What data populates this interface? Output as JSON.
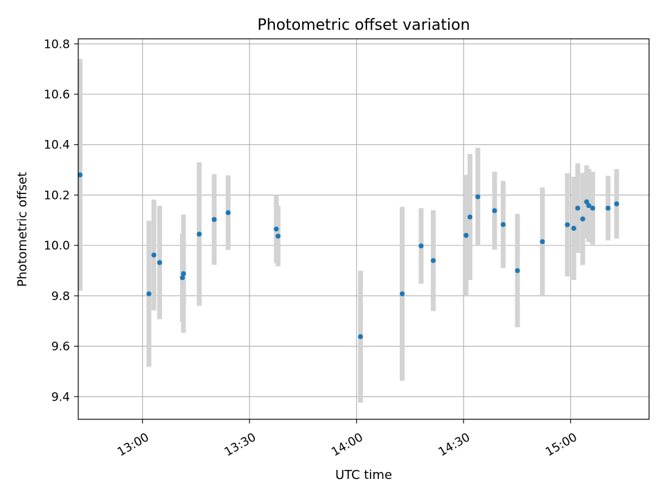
{
  "chart_data": {
    "type": "scatter",
    "title": "Photometric offset variation",
    "xlabel": "UTC time",
    "ylabel": "Photometric offset",
    "xlim": [
      "12:42",
      "15:22"
    ],
    "ylim": [
      9.31,
      10.82
    ],
    "x_ticks": [
      "13:00",
      "13:30",
      "14:00",
      "14:30",
      "15:00"
    ],
    "y_ticks": [
      9.4,
      9.6,
      9.8,
      10.0,
      10.2,
      10.4,
      10.6,
      10.8
    ],
    "y_tick_labels": [
      "9.4",
      "9.6",
      "9.8",
      "10.0",
      "10.2",
      "10.4",
      "10.6",
      "10.8"
    ],
    "grid": true,
    "colors": {
      "point": "#1f77b4",
      "errorbar": "#d3d3d3",
      "grid": "#b0b0b0"
    },
    "points": [
      {
        "x": "12:42:30",
        "y": 10.28,
        "err": 0.46
      },
      {
        "x": "13:01:48",
        "y": 9.808,
        "err": 0.29
      },
      {
        "x": "13:03:12",
        "y": 9.962,
        "err": 0.22
      },
      {
        "x": "13:04:48",
        "y": 9.932,
        "err": 0.225
      },
      {
        "x": "13:11:12",
        "y": 9.872,
        "err": 0.175
      },
      {
        "x": "13:11:30",
        "y": 9.888,
        "err": 0.235
      },
      {
        "x": "13:15:54",
        "y": 10.045,
        "err": 0.285
      },
      {
        "x": "13:20:06",
        "y": 10.103,
        "err": 0.18
      },
      {
        "x": "13:24:00",
        "y": 10.13,
        "err": 0.148
      },
      {
        "x": "13:37:30",
        "y": 10.065,
        "err": 0.135
      },
      {
        "x": "13:38:00",
        "y": 10.037,
        "err": 0.12
      },
      {
        "x": "14:01:06",
        "y": 9.638,
        "err": 0.262
      },
      {
        "x": "14:12:48",
        "y": 9.808,
        "err": 0.345
      },
      {
        "x": "14:18:06",
        "y": 9.998,
        "err": 0.15
      },
      {
        "x": "14:21:30",
        "y": 9.94,
        "err": 0.2
      },
      {
        "x": "14:30:42",
        "y": 10.04,
        "err": 0.24
      },
      {
        "x": "14:31:48",
        "y": 10.113,
        "err": 0.25
      },
      {
        "x": "14:34:00",
        "y": 10.193,
        "err": 0.195
      },
      {
        "x": "14:38:42",
        "y": 10.138,
        "err": 0.155
      },
      {
        "x": "14:41:06",
        "y": 10.083,
        "err": 0.173
      },
      {
        "x": "14:45:06",
        "y": 9.9,
        "err": 0.225
      },
      {
        "x": "14:52:06",
        "y": 10.015,
        "err": 0.215
      },
      {
        "x": "14:59:06",
        "y": 10.082,
        "err": 0.205
      },
      {
        "x": "15:00:54",
        "y": 10.068,
        "err": 0.205
      },
      {
        "x": "15:02:00",
        "y": 10.148,
        "err": 0.178
      },
      {
        "x": "15:03:24",
        "y": 10.105,
        "err": 0.183
      },
      {
        "x": "15:04:30",
        "y": 10.173,
        "err": 0.145
      },
      {
        "x": "15:05:06",
        "y": 10.158,
        "err": 0.145
      },
      {
        "x": "15:06:12",
        "y": 10.148,
        "err": 0.145
      },
      {
        "x": "15:10:30",
        "y": 10.148,
        "err": 0.128
      },
      {
        "x": "15:12:54",
        "y": 10.165,
        "err": 0.138
      }
    ]
  }
}
